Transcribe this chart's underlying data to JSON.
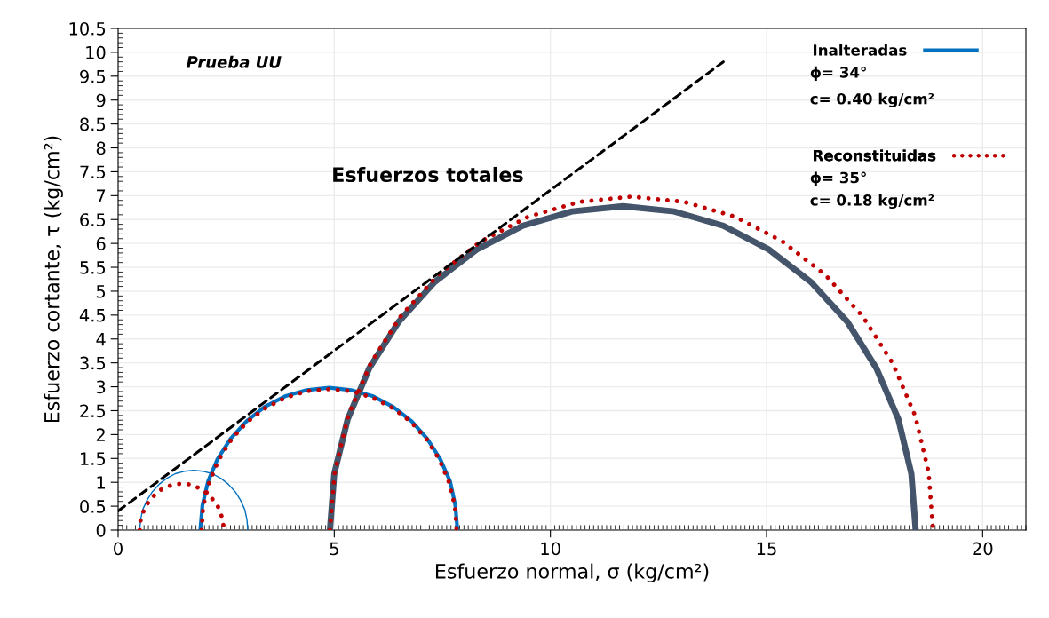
{
  "chart_data": {
    "type": "line",
    "xlabel": "Esfuerzo normal, σ (kg/cm²)",
    "ylabel": "Esfuerzo cortante, τ (kg/cm²)",
    "annotations": [
      "Prueba UU",
      "Esfuerzos totales",
      "ϕ= 34°",
      "c= 0.40 kg/cm²",
      "ϕ= 35°",
      "c= 0.18 kg/cm²"
    ],
    "xlim": [
      0,
      21
    ],
    "xticks": [
      0,
      5,
      10,
      15,
      20
    ],
    "ylim": [
      0,
      10.5
    ],
    "yticks": [
      0,
      0.5,
      1,
      1.5,
      2,
      2.5,
      3,
      3.5,
      4,
      4.5,
      5,
      5.5,
      6,
      6.5,
      7,
      7.5,
      8,
      8.5,
      9,
      9.5,
      10,
      10.5
    ],
    "grid": true,
    "legend": "top right",
    "series": [
      {
        "color": "#0070c0",
        "line_style": "solid",
        "x": [
          0.5,
          0.52,
          0.57,
          0.67,
          0.79,
          0.95,
          1.12,
          1.32,
          1.53,
          1.75,
          1.97,
          2.18,
          2.38,
          2.55,
          2.71,
          2.83,
          2.93,
          2.98,
          3.0
        ],
        "values": [
          0,
          0.22,
          0.43,
          0.63,
          0.8,
          0.96,
          1.08,
          1.18,
          1.23,
          1.25,
          1.23,
          1.18,
          1.08,
          0.96,
          0.8,
          0.63,
          0.43,
          0.22,
          0
        ]
      },
      {
        "name": "Inalteradas",
        "color": "#0070c0",
        "line_style": "solid",
        "x": [
          1.9,
          1.95,
          2.08,
          2.3,
          2.6,
          2.97,
          3.39,
          3.86,
          4.36,
          4.88,
          5.39,
          5.9,
          6.36,
          6.79,
          7.15,
          7.45,
          7.68,
          7.8,
          7.85
        ],
        "values": [
          0,
          0.52,
          1.02,
          1.49,
          1.91,
          2.28,
          2.58,
          2.8,
          2.93,
          2.98,
          2.93,
          2.8,
          2.58,
          2.28,
          1.91,
          1.49,
          1.02,
          0.52,
          0
        ]
      },
      {
        "color": "#44546a",
        "line_style": "solid",
        "x": [
          4.9,
          5.0,
          5.31,
          5.81,
          6.49,
          7.32,
          8.29,
          9.36,
          10.5,
          11.68,
          12.86,
          14.0,
          15.06,
          16.03,
          16.87,
          17.54,
          18.05,
          18.35,
          18.45
        ],
        "values": [
          0,
          1.18,
          2.32,
          3.39,
          4.36,
          5.19,
          5.87,
          6.37,
          6.67,
          6.78,
          6.67,
          6.37,
          5.87,
          5.19,
          4.36,
          3.39,
          2.32,
          1.18,
          0
        ]
      },
      {
        "color": "#c00000",
        "line_style": "dotted",
        "x": [
          0.5,
          0.51,
          0.56,
          0.63,
          0.73,
          0.85,
          0.98,
          1.14,
          1.3,
          1.47,
          1.64,
          1.8,
          1.96,
          2.09,
          2.21,
          2.31,
          2.38,
          2.43,
          2.44
        ],
        "values": [
          0,
          0.17,
          0.33,
          0.49,
          0.62,
          0.74,
          0.84,
          0.91,
          0.96,
          0.97,
          0.96,
          0.91,
          0.84,
          0.74,
          0.62,
          0.49,
          0.33,
          0.17,
          0
        ]
      },
      {
        "name": "Reconstituidas",
        "color": "#c00000",
        "line_style": "dotted",
        "x": [
          1.93,
          1.97,
          2.11,
          2.33,
          2.62,
          2.98,
          3.4,
          3.87,
          4.37,
          4.88,
          5.39,
          5.89,
          6.36,
          6.78,
          7.14,
          7.43,
          7.65,
          7.79,
          7.83
        ],
        "values": [
          0,
          0.51,
          1.01,
          1.48,
          1.9,
          2.26,
          2.55,
          2.77,
          2.91,
          2.95,
          2.91,
          2.77,
          2.55,
          2.26,
          1.9,
          1.48,
          1.01,
          0.51,
          0
        ]
      },
      {
        "color": "#c00000",
        "line_style": "dotted",
        "x": [
          4.9,
          5.01,
          5.32,
          5.84,
          6.54,
          7.4,
          8.39,
          9.49,
          10.67,
          11.88,
          13.09,
          14.27,
          15.37,
          16.36,
          17.22,
          17.92,
          18.44,
          18.75,
          18.85
        ],
        "values": [
          0,
          1.21,
          2.39,
          3.49,
          4.48,
          5.34,
          6.04,
          6.56,
          6.87,
          6.98,
          6.87,
          6.56,
          6.04,
          5.34,
          4.48,
          3.49,
          2.39,
          1.21,
          0
        ]
      },
      {
        "color": "#000000",
        "line_style": "dashed",
        "x": [
          0,
          14
        ],
        "values": [
          0.4,
          9.8
        ]
      }
    ]
  }
}
